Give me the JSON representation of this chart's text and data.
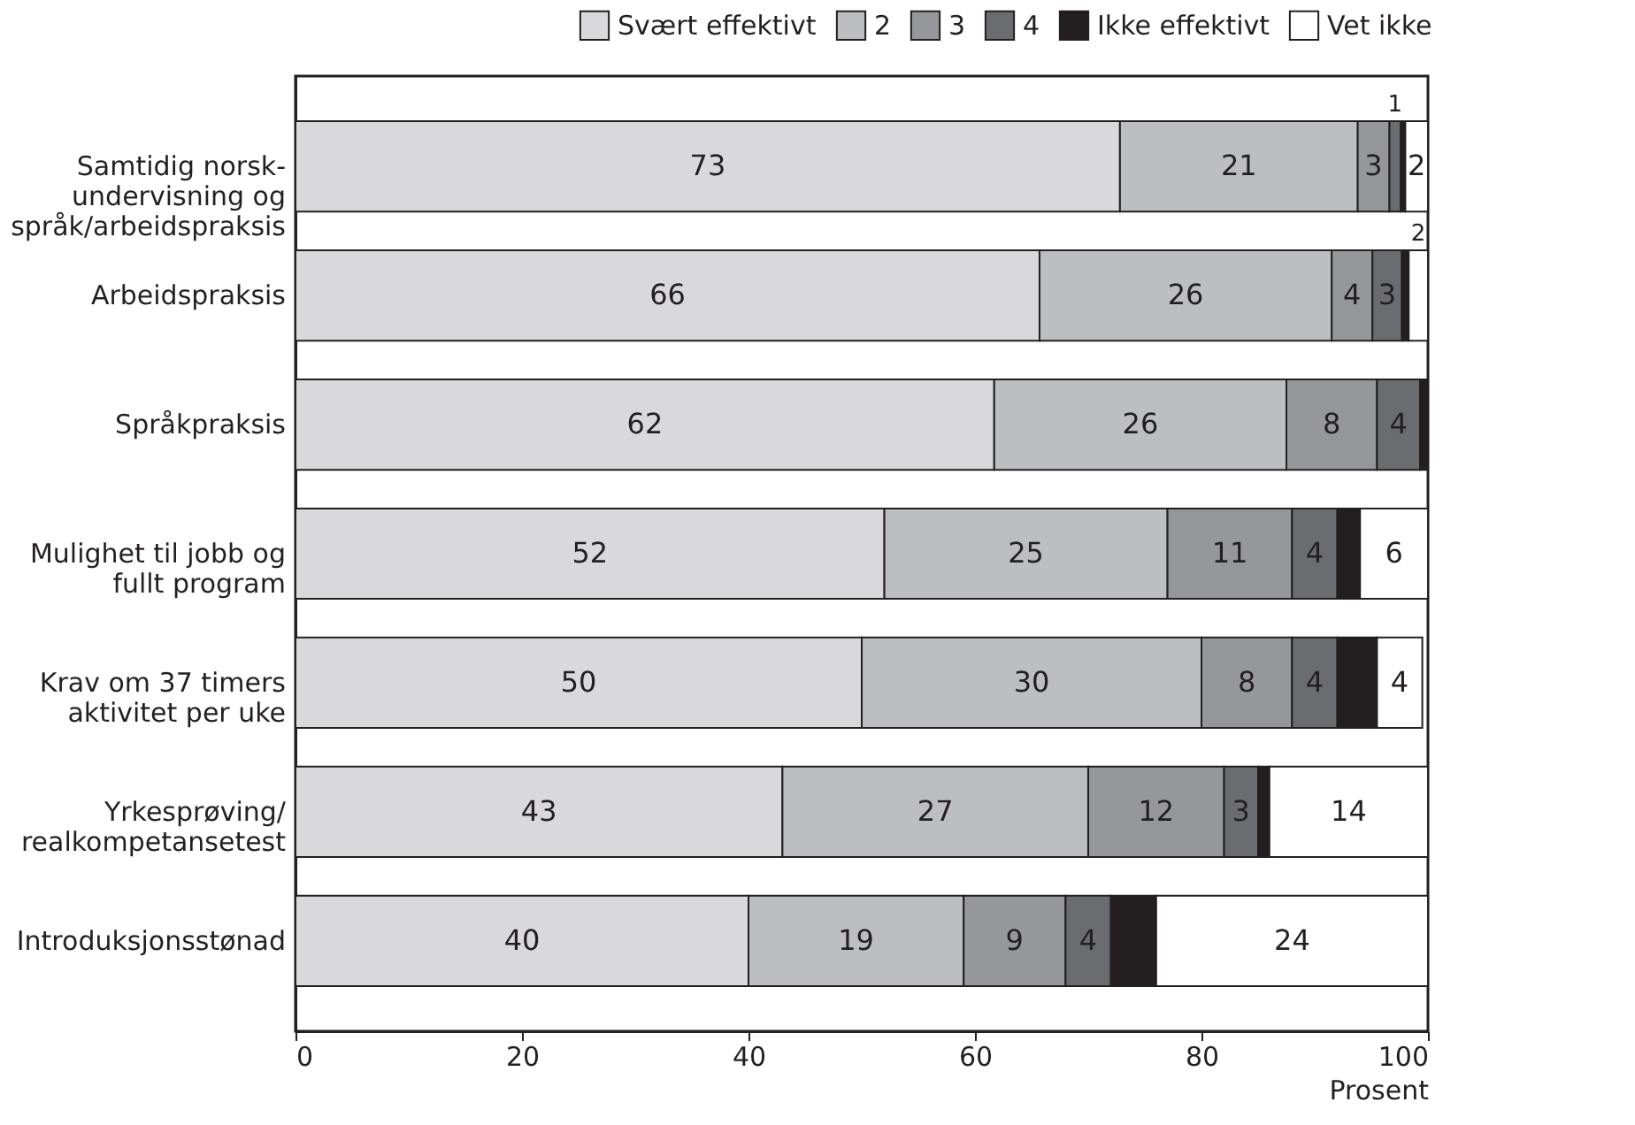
{
  "chart_data": {
    "type": "bar",
    "orientation": "horizontal",
    "stacked": true,
    "categories": [
      "Samtidig norsk-\nundervisning og\nspråk/arbeidspraksis",
      "Arbeidspraksis",
      "Språkpraksis",
      "Mulighet til jobb og\nfullt program",
      "Krav om 37 timers\naktivitet per uke",
      "Yrkesprøving/\nrealkompetansetest",
      "Introduksjonsstønad"
    ],
    "series": [
      {
        "name": "Svært effektivt",
        "color": "#d9d9db",
        "values": [
          72.8,
          65.7,
          61.7,
          52,
          50,
          43,
          40
        ],
        "value_labels": [
          "73",
          "66",
          "62",
          "52",
          "50",
          "43",
          "40"
        ]
      },
      {
        "name": "2",
        "color": "#bdbec2",
        "values": [
          21,
          25.8,
          25.8,
          25,
          30,
          27,
          19
        ],
        "value_labels": [
          "21",
          "26",
          "26",
          "25",
          "30",
          "27",
          "19"
        ]
      },
      {
        "name": "3",
        "color": "#96979a",
        "values": [
          2.8,
          3.6,
          8,
          11,
          8,
          12,
          9
        ],
        "value_labels": [
          "3",
          "4",
          "8",
          "11",
          "8",
          "12",
          "9"
        ]
      },
      {
        "name": "4",
        "color": "#6b6c6f",
        "values": [
          1,
          2.6,
          3.8,
          4,
          4,
          3,
          4
        ],
        "value_labels": [
          "1",
          "3",
          "4",
          "4",
          "4",
          "3",
          "4"
        ]
      },
      {
        "name": "Ikke effektivt",
        "color": "#231f20",
        "values": [
          0.4,
          0.6,
          0.7,
          2,
          3.5,
          1,
          4
        ],
        "value_labels": [
          null,
          null,
          null,
          null,
          null,
          null,
          null
        ]
      },
      {
        "name": "Vet ikke",
        "color": "#ffffff",
        "values": [
          2,
          1.7,
          null,
          6,
          4,
          14,
          24
        ],
        "value_labels": [
          "2",
          "2",
          null,
          "6",
          "4",
          "14",
          "24"
        ]
      }
    ],
    "xlim": [
      0,
      100
    ],
    "xticks": [
      0,
      20,
      40,
      60,
      80,
      100
    ],
    "xlabel": "Prosent",
    "grid": false,
    "legend": "top right"
  }
}
